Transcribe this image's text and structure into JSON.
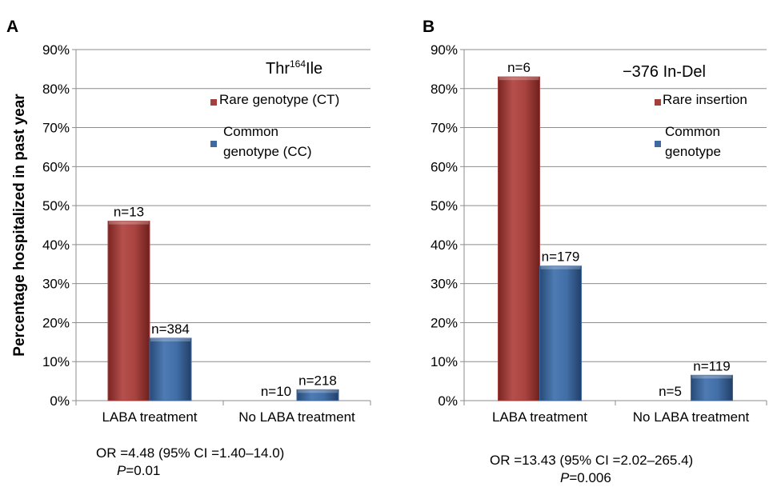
{
  "chart_data": [
    {
      "panel": "A",
      "type": "bar",
      "title": "Thr164Ile",
      "title_parts": {
        "base": "Thr",
        "superscript": "164",
        "suffix": "Ile"
      },
      "ylabel": "Percentage hospitalized in past year",
      "xlabel": "",
      "ylim": [
        0,
        90
      ],
      "ytick_step": 10,
      "ytick_suffix": "%",
      "grid": true,
      "legend_position": "right",
      "categories": [
        "LABA treatment",
        "No LABA treatment"
      ],
      "series": [
        {
          "name": "Rare genotype (CT)",
          "legend_lines": [
            "Rare genotype (CT)"
          ],
          "color": "#a33f3c",
          "values": [
            46,
            0
          ],
          "labels": [
            "n=13",
            "n=10"
          ]
        },
        {
          "name": "Common genotype (CC)",
          "legend_lines": [
            "Common",
            "genotype (CC)"
          ],
          "color": "#3f6aa0",
          "values": [
            16,
            2.8
          ],
          "labels": [
            "n=384",
            "n=218"
          ]
        }
      ],
      "stats_line": "OR =4.48 (95% CI =1.40–14.0)",
      "p_label": "P",
      "p_value": "=0.01"
    },
    {
      "panel": "B",
      "type": "bar",
      "title": "−376 In-Del",
      "ylabel": "",
      "xlabel": "",
      "ylim": [
        0,
        90
      ],
      "ytick_step": 10,
      "ytick_suffix": "%",
      "grid": true,
      "legend_position": "right",
      "categories": [
        "LABA treatment",
        "No LABA treatment"
      ],
      "series": [
        {
          "name": "Rare insertion",
          "legend_lines": [
            "Rare insertion"
          ],
          "color": "#a33f3c",
          "values": [
            83,
            0
          ],
          "labels": [
            "n=6",
            "n=5"
          ]
        },
        {
          "name": "Common genotype",
          "legend_lines": [
            "Common",
            "genotype"
          ],
          "color": "#3f6aa0",
          "values": [
            34.5,
            6.5
          ],
          "labels": [
            "n=179",
            "n=119"
          ]
        }
      ],
      "stats_line": "OR =13.43 (95% CI =2.02–265.4)",
      "p_label": "P",
      "p_value": "=0.006"
    }
  ]
}
